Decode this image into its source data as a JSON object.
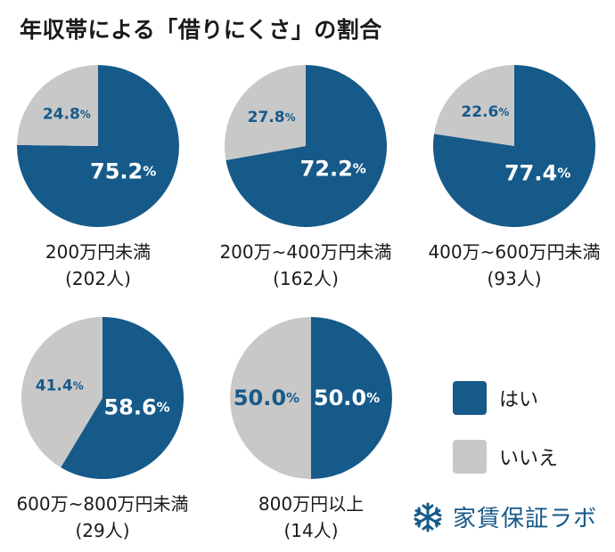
{
  "title": "年収帯による「借りにくさ」の割合",
  "colors": {
    "yes": "#165a8a",
    "no": "#c8c8c8"
  },
  "legend": {
    "yes_label": "はい",
    "no_label": "いいえ"
  },
  "brand": {
    "name": "家賃保証ラボ",
    "icon": "snowflake-logo-icon"
  },
  "chart_data": [
    {
      "type": "pie",
      "label": "200万円未満",
      "count_label": "(202人)",
      "slices": [
        {
          "name": "はい",
          "value": 75.2,
          "value_label": "75.2",
          "unit": "%"
        },
        {
          "name": "いいえ",
          "value": 24.8,
          "value_label": "24.8",
          "unit": "%"
        }
      ]
    },
    {
      "type": "pie",
      "label": "200万~400万円未満",
      "count_label": "(162人)",
      "slices": [
        {
          "name": "はい",
          "value": 72.2,
          "value_label": "72.2",
          "unit": "%"
        },
        {
          "name": "いいえ",
          "value": 27.8,
          "value_label": "27.8",
          "unit": "%"
        }
      ]
    },
    {
      "type": "pie",
      "label": "400万~600万円未満",
      "count_label": "(93人)",
      "slices": [
        {
          "name": "はい",
          "value": 77.4,
          "value_label": "77.4",
          "unit": "%"
        },
        {
          "name": "いいえ",
          "value": 22.6,
          "value_label": "22.6",
          "unit": "%"
        }
      ]
    },
    {
      "type": "pie",
      "label": "600万~800万円未満",
      "count_label": "(29人)",
      "slices": [
        {
          "name": "はい",
          "value": 58.6,
          "value_label": "58.6",
          "unit": "%"
        },
        {
          "name": "いいえ",
          "value": 41.4,
          "value_label": "41.4",
          "unit": "%"
        }
      ]
    },
    {
      "type": "pie",
      "label": "800万円以上",
      "count_label": "(14人)",
      "slices": [
        {
          "name": "はい",
          "value": 50.0,
          "value_label": "50.0",
          "unit": "%"
        },
        {
          "name": "いいえ",
          "value": 50.0,
          "value_label": "50.0",
          "unit": "%"
        }
      ]
    }
  ]
}
